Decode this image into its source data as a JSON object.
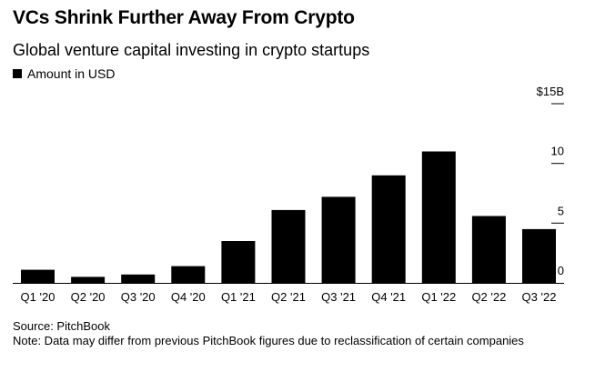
{
  "header": {
    "title": "VCs Shrink Further Away From Crypto",
    "subtitle": "Global venture capital investing in crypto startups"
  },
  "legend": {
    "label": "Amount in USD"
  },
  "footer": {
    "source": "Source: PitchBook",
    "note": "Note: Data may differ from previous PitchBook figures due to reclassification of certain companies"
  },
  "colors": {
    "bar": "#000000",
    "text": "#000000",
    "background": "#ffffff"
  },
  "chart_data": {
    "type": "bar",
    "categories": [
      "Q1 '20",
      "Q2 '20",
      "Q3 '20",
      "Q4 '20",
      "Q1 '21",
      "Q2 '21",
      "Q3 '21",
      "Q4 '21",
      "Q1 '22",
      "Q2 '22",
      "Q3 '22"
    ],
    "values": [
      1.1,
      0.5,
      0.7,
      1.4,
      3.5,
      6.1,
      7.2,
      9.0,
      11.0,
      5.6,
      4.5
    ],
    "title": "VCs Shrink Further Away From Crypto",
    "subtitle": "Global venture capital investing in crypto startups",
    "legend": "Amount in USD",
    "ylim": [
      0,
      15
    ],
    "yticks": [
      0,
      5,
      10,
      15
    ],
    "ytick_labels": [
      "0",
      "5",
      "10",
      "$15B"
    ],
    "y_axis_position": "right",
    "grid": false
  }
}
